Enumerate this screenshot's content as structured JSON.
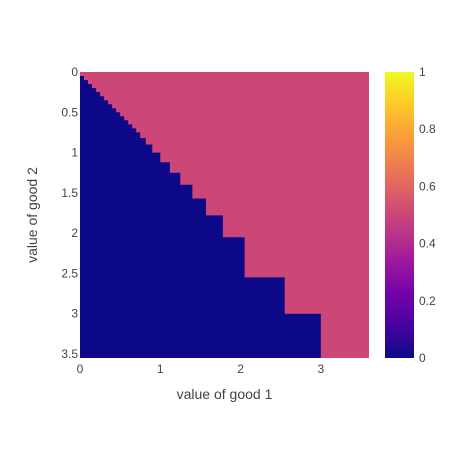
{
  "chart_data": {
    "type": "heatmap",
    "title": "",
    "xlabel": "value of good 1",
    "ylabel": "value of good 2",
    "xlim": [
      0,
      3.6
    ],
    "ylim": [
      3.55,
      0
    ],
    "y_axis_reversed": true,
    "x_ticks": [
      "0",
      "1",
      "2",
      "3"
    ],
    "y_ticks": [
      "0",
      "0.5",
      "1",
      "1.5",
      "2",
      "2.5",
      "3",
      "3.5"
    ],
    "colorscale": "Plasma",
    "zlim": [
      0,
      1
    ],
    "colorbar_ticks": [
      "0",
      "0.2",
      "0.4",
      "0.6",
      "0.8",
      "1"
    ],
    "value_colors": {
      "0": "#0d0887",
      "0.5": "#cc4778"
    },
    "regions": [
      {
        "value": 0,
        "description": "below staircase boundary (lower-left)"
      },
      {
        "value": 0.5,
        "description": "above staircase boundary (upper-right)"
      }
    ],
    "boundary_steps": [
      {
        "x": 0.0,
        "y": 0.0
      },
      {
        "x": 0.05,
        "y": 0.05
      },
      {
        "x": 0.1,
        "y": 0.1
      },
      {
        "x": 0.15,
        "y": 0.15
      },
      {
        "x": 0.2,
        "y": 0.2
      },
      {
        "x": 0.25,
        "y": 0.25
      },
      {
        "x": 0.3,
        "y": 0.3
      },
      {
        "x": 0.35,
        "y": 0.35
      },
      {
        "x": 0.4,
        "y": 0.4
      },
      {
        "x": 0.45,
        "y": 0.45
      },
      {
        "x": 0.5,
        "y": 0.5
      },
      {
        "x": 0.55,
        "y": 0.55
      },
      {
        "x": 0.6,
        "y": 0.6
      },
      {
        "x": 0.65,
        "y": 0.65
      },
      {
        "x": 0.7,
        "y": 0.7
      },
      {
        "x": 0.75,
        "y": 0.75
      },
      {
        "x": 0.82,
        "y": 0.82
      },
      {
        "x": 0.9,
        "y": 0.9
      },
      {
        "x": 1.0,
        "y": 1.0
      },
      {
        "x": 1.12,
        "y": 1.12
      },
      {
        "x": 1.25,
        "y": 1.25
      },
      {
        "x": 1.4,
        "y": 1.4
      },
      {
        "x": 1.57,
        "y": 1.57
      },
      {
        "x": 1.78,
        "y": 1.78
      },
      {
        "x": 2.05,
        "y": 2.05
      },
      {
        "x": 2.55,
        "y": 2.55
      },
      {
        "x": 3.0,
        "y": 3.0
      }
    ]
  }
}
